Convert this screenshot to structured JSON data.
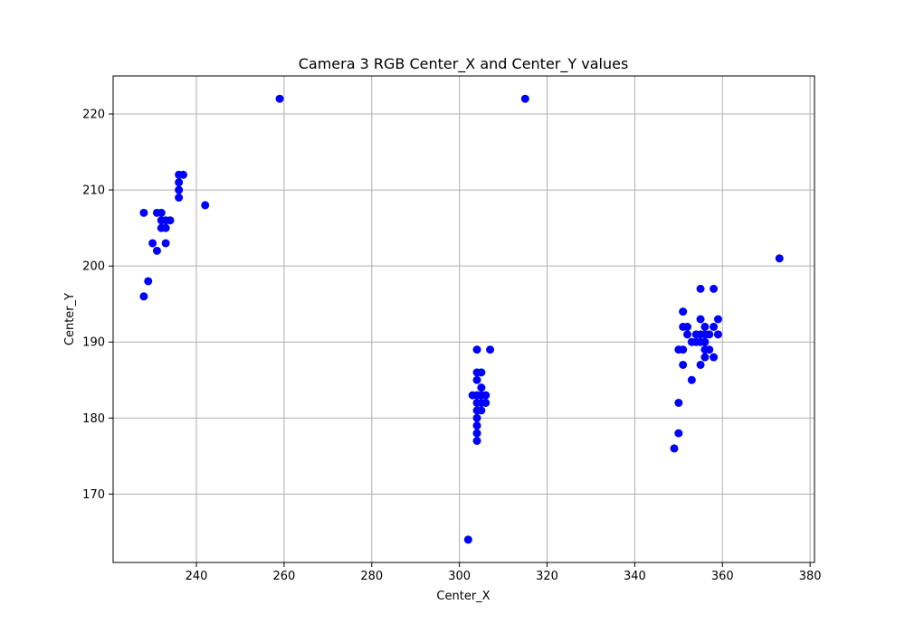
{
  "colors": {
    "background": "#ffffff",
    "point": "#0000ff",
    "grid": "#b0b0b0",
    "axis": "#000000"
  },
  "chart_data": {
    "type": "scatter",
    "title": "Camera 3 RGB Center_X and Center_Y values",
    "xlabel": "Center_X",
    "ylabel": "Center_Y",
    "xlim": [
      221,
      381
    ],
    "ylim": [
      161,
      225
    ],
    "xticks": [
      240,
      260,
      280,
      300,
      320,
      340,
      360,
      380
    ],
    "yticks": [
      170,
      180,
      190,
      200,
      210,
      220
    ],
    "grid": true,
    "legend": "none",
    "series": [
      {
        "color": "#0000ff",
        "points": [
          [
            259,
            222
          ],
          [
            315,
            222
          ],
          [
            228,
            207
          ],
          [
            228,
            196
          ],
          [
            229,
            198
          ],
          [
            230,
            203
          ],
          [
            231,
            207
          ],
          [
            231,
            202
          ],
          [
            232,
            207
          ],
          [
            232,
            206
          ],
          [
            232,
            205
          ],
          [
            233,
            206
          ],
          [
            233,
            205
          ],
          [
            233,
            203
          ],
          [
            234,
            206
          ],
          [
            236,
            212
          ],
          [
            236,
            211
          ],
          [
            236,
            210
          ],
          [
            236,
            209
          ],
          [
            237,
            212
          ],
          [
            242,
            208
          ],
          [
            302,
            164
          ],
          [
            303,
            183
          ],
          [
            304,
            189
          ],
          [
            304,
            186
          ],
          [
            304,
            185
          ],
          [
            304,
            183
          ],
          [
            304,
            182
          ],
          [
            304,
            181
          ],
          [
            304,
            180
          ],
          [
            304,
            179
          ],
          [
            304,
            178
          ],
          [
            304,
            177
          ],
          [
            305,
            186
          ],
          [
            305,
            184
          ],
          [
            305,
            183
          ],
          [
            305,
            182
          ],
          [
            305,
            181
          ],
          [
            306,
            183
          ],
          [
            306,
            182
          ],
          [
            307,
            189
          ],
          [
            349,
            176
          ],
          [
            350,
            189
          ],
          [
            350,
            182
          ],
          [
            350,
            178
          ],
          [
            351,
            194
          ],
          [
            351,
            192
          ],
          [
            351,
            189
          ],
          [
            351,
            187
          ],
          [
            352,
            192
          ],
          [
            352,
            191
          ],
          [
            353,
            190
          ],
          [
            353,
            185
          ],
          [
            354,
            191
          ],
          [
            354,
            190
          ],
          [
            355,
            197
          ],
          [
            355,
            193
          ],
          [
            355,
            191
          ],
          [
            355,
            190
          ],
          [
            355,
            187
          ],
          [
            356,
            192
          ],
          [
            356,
            191
          ],
          [
            356,
            190
          ],
          [
            356,
            189
          ],
          [
            356,
            188
          ],
          [
            357,
            191
          ],
          [
            357,
            189
          ],
          [
            358,
            197
          ],
          [
            358,
            192
          ],
          [
            358,
            188
          ],
          [
            359,
            193
          ],
          [
            359,
            191
          ],
          [
            373,
            201
          ]
        ]
      }
    ]
  }
}
